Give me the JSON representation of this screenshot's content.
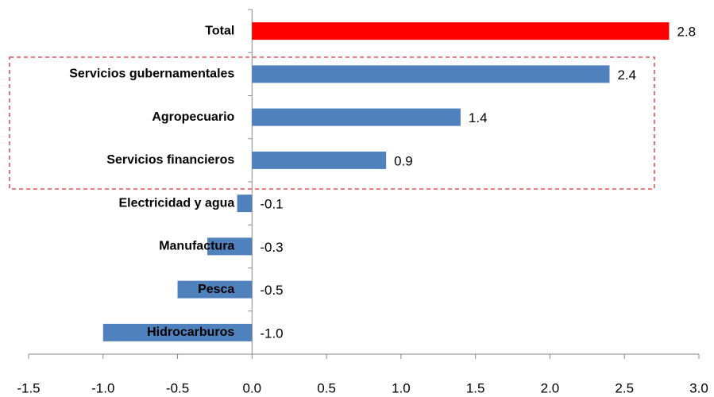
{
  "chart_data": {
    "type": "bar",
    "orientation": "horizontal",
    "categories": [
      "Total",
      "Servicios gubernamentales",
      "Agropecuario",
      "Servicios financieros",
      "Electricidad y agua",
      "Manufactura",
      "Pesca",
      "Hidrocarburos"
    ],
    "values": [
      2.8,
      2.4,
      1.4,
      0.9,
      -0.1,
      -0.3,
      -0.5,
      -1.0
    ],
    "value_labels": [
      "2.8",
      "2.4",
      "1.4",
      "0.9",
      "-0.1",
      "-0.3",
      "-0.5",
      "-1.0"
    ],
    "colors": [
      "#ff0000",
      "#4f81bd",
      "#4f81bd",
      "#4f81bd",
      "#4f81bd",
      "#4f81bd",
      "#4f81bd",
      "#4f81bd"
    ],
    "xlim": [
      -1.5,
      3.0
    ],
    "xticks": [
      -1.5,
      {
        "value": -1,
        "label": "-1.0"
      },
      -0.5,
      {
        "value": 0,
        "label": "0.0"
      },
      0.5,
      {
        "value": 1,
        "label": "1.0"
      },
      1.5,
      {
        "value": 2,
        "label": "2.0"
      },
      2.5,
      {
        "value": 3,
        "label": "3.0"
      }
    ],
    "grid": false
  }
}
